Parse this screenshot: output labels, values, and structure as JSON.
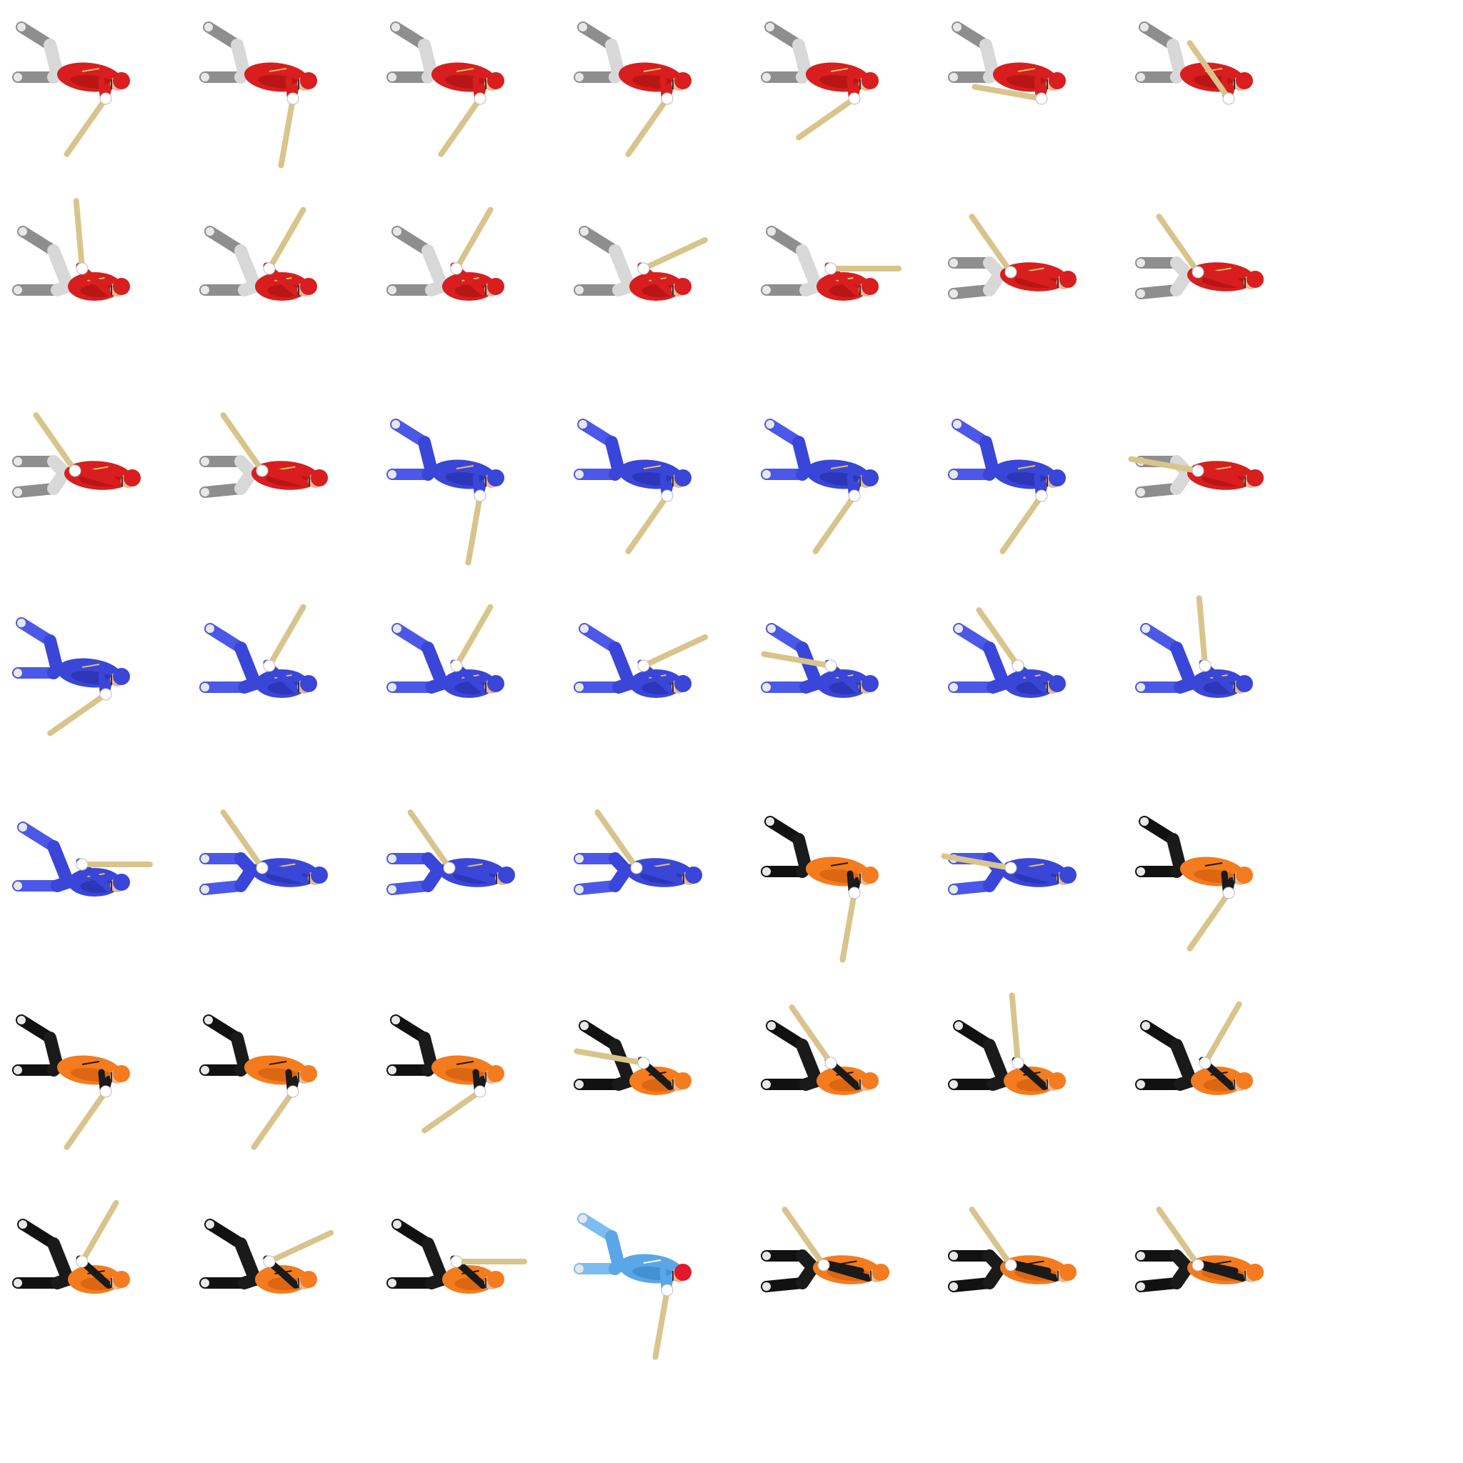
{
  "sheet": {
    "background": "#ffffff",
    "kits": {
      "red": {
        "shirt": "#d81e1e",
        "shirt_dark": "#9e1010",
        "trim": "#e8c060",
        "helmet": "#d81e1e",
        "legs": "#d8d8d8",
        "pads": "#8e8e8e",
        "arms": "#d81e1e"
      },
      "blue": {
        "shirt": "#3a46d8",
        "shirt_dark": "#1f2aa0",
        "trim": "#e8c060",
        "helmet": "#3a46d8",
        "legs": "#3a46d8",
        "pads": "#4b58e8",
        "arms": "#3a46d8"
      },
      "orange": {
        "shirt": "#f47b1e",
        "shirt_dark": "#c8550a",
        "trim": "#1a1a1a",
        "helmet": "#f47b1e",
        "legs": "#1a1a1a",
        "pads": "#111111",
        "arms": "#1a1a1a"
      },
      "sky": {
        "shirt": "#5aa6e6",
        "shirt_dark": "#2f7fc4",
        "trim": "#ffffff",
        "helmet": "#e01a2a",
        "legs": "#5aa6e6",
        "pads": "#7cbcf0",
        "arms": "#5aa6e6"
      }
    },
    "bat_color": "#d8c48c",
    "glove_color": "#ffffff",
    "skin_color": "#e6b894",
    "frames": [
      {
        "kit": "red",
        "stance": "crouch",
        "bat": "down"
      },
      {
        "kit": "red",
        "stance": "crouch",
        "bat": "down-steep"
      },
      {
        "kit": "red",
        "stance": "crouch",
        "bat": "down"
      },
      {
        "kit": "red",
        "stance": "crouch",
        "bat": "down"
      },
      {
        "kit": "red",
        "stance": "crouch",
        "bat": "down-low"
      },
      {
        "kit": "red",
        "stance": "crouch",
        "bat": "back"
      },
      {
        "kit": "red",
        "stance": "crouch",
        "bat": "up-back"
      },
      {
        "kit": "red",
        "stance": "lunge",
        "bat": "up"
      },
      {
        "kit": "red",
        "stance": "lunge",
        "bat": "up-forward"
      },
      {
        "kit": "red",
        "stance": "lunge",
        "bat": "up-forward"
      },
      {
        "kit": "red",
        "stance": "lunge",
        "bat": "forward"
      },
      {
        "kit": "red",
        "stance": "lunge",
        "bat": "flat"
      },
      {
        "kit": "red",
        "stance": "upright",
        "bat": "up-back"
      },
      {
        "kit": "red",
        "stance": "upright",
        "bat": "up-back"
      },
      {
        "kit": "red",
        "stance": "upright",
        "bat": "up-back"
      },
      {
        "kit": "red",
        "stance": "upright",
        "bat": "up-back"
      },
      {
        "kit": "blue",
        "stance": "crouch",
        "bat": "down-steep"
      },
      {
        "kit": "blue",
        "stance": "crouch",
        "bat": "down"
      },
      {
        "kit": "blue",
        "stance": "crouch",
        "bat": "down"
      },
      {
        "kit": "blue",
        "stance": "crouch",
        "bat": "down"
      },
      {
        "kit": "red",
        "stance": "upright",
        "bat": "back"
      },
      {
        "kit": "blue",
        "stance": "crouch",
        "bat": "down-low"
      },
      {
        "kit": "blue",
        "stance": "lunge",
        "bat": "up-forward"
      },
      {
        "kit": "blue",
        "stance": "lunge",
        "bat": "up-forward"
      },
      {
        "kit": "blue",
        "stance": "lunge",
        "bat": "forward"
      },
      {
        "kit": "blue",
        "stance": "lunge",
        "bat": "back"
      },
      {
        "kit": "blue",
        "stance": "lunge",
        "bat": "up-back"
      },
      {
        "kit": "blue",
        "stance": "lunge",
        "bat": "up"
      },
      {
        "kit": "blue",
        "stance": "lunge",
        "bat": "flat"
      },
      {
        "kit": "blue",
        "stance": "upright",
        "bat": "up-back"
      },
      {
        "kit": "blue",
        "stance": "upright",
        "bat": "up-back"
      },
      {
        "kit": "blue",
        "stance": "upright",
        "bat": "up-back"
      },
      {
        "kit": "orange",
        "stance": "crouch",
        "bat": "down-steep"
      },
      {
        "kit": "blue",
        "stance": "upright",
        "bat": "back"
      },
      {
        "kit": "orange",
        "stance": "crouch",
        "bat": "down"
      },
      {
        "kit": "orange",
        "stance": "crouch",
        "bat": "down"
      },
      {
        "kit": "orange",
        "stance": "crouch",
        "bat": "down"
      },
      {
        "kit": "orange",
        "stance": "crouch",
        "bat": "down-low"
      },
      {
        "kit": "orange",
        "stance": "lunge",
        "bat": "back"
      },
      {
        "kit": "orange",
        "stance": "lunge",
        "bat": "up-back"
      },
      {
        "kit": "orange",
        "stance": "lunge",
        "bat": "up"
      },
      {
        "kit": "orange",
        "stance": "lunge",
        "bat": "up-forward"
      },
      {
        "kit": "orange",
        "stance": "lunge",
        "bat": "up-forward"
      },
      {
        "kit": "orange",
        "stance": "lunge",
        "bat": "forward"
      },
      {
        "kit": "orange",
        "stance": "lunge",
        "bat": "flat"
      },
      {
        "kit": "sky",
        "stance": "crouch",
        "bat": "down-steep"
      },
      {
        "kit": "orange",
        "stance": "upright",
        "bat": "up-back"
      },
      {
        "kit": "orange",
        "stance": "upright",
        "bat": "up-back"
      },
      {
        "kit": "orange",
        "stance": "upright",
        "bat": "up-back"
      }
    ]
  }
}
